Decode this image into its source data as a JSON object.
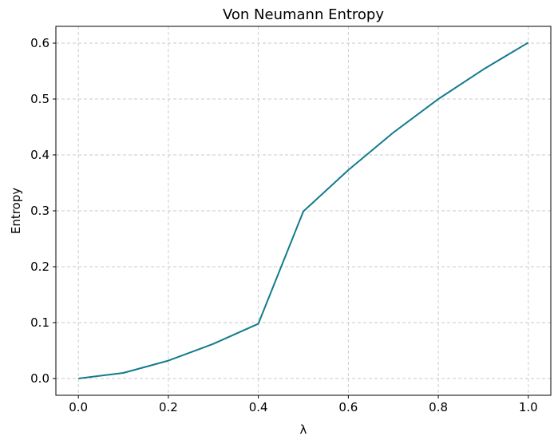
{
  "chart_data": {
    "type": "line",
    "title": "Von Neumann Entropy",
    "xlabel": "λ",
    "ylabel": "Entropy",
    "xlim": [
      -0.05,
      1.05
    ],
    "ylim": [
      -0.03,
      0.63
    ],
    "grid": true,
    "x_ticks": [
      "0.0",
      "0.2",
      "0.4",
      "0.6",
      "0.8",
      "1.0"
    ],
    "y_ticks": [
      "0.0",
      "0.1",
      "0.2",
      "0.3",
      "0.4",
      "0.5",
      "0.6"
    ],
    "series": [
      {
        "color": "#127b8d",
        "x": [
          0.0,
          0.1,
          0.2,
          0.3,
          0.4,
          0.5,
          0.6,
          0.7,
          0.8,
          0.9,
          1.0
        ],
        "y": [
          0.0,
          0.01,
          0.032,
          0.062,
          0.098,
          0.299,
          0.373,
          0.44,
          0.5,
          0.553,
          0.601
        ]
      }
    ]
  }
}
